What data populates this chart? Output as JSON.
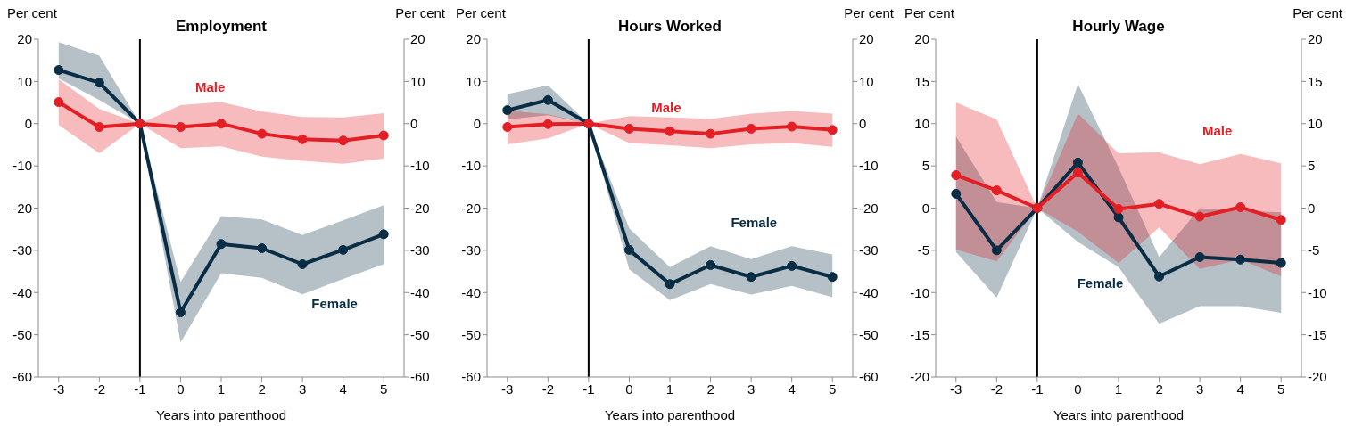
{
  "chart_data": [
    {
      "type": "line",
      "title": "Employment",
      "xlabel": "Years into parenthood",
      "ylabel": "Per cent",
      "y2label": "Per cent",
      "x": [
        -3,
        -2,
        -1,
        0,
        1,
        2,
        3,
        4,
        5
      ],
      "xlim": [
        -3.5,
        5.5
      ],
      "xticks": [
        -3,
        -2,
        -1,
        0,
        1,
        2,
        3,
        4,
        5
      ],
      "ylim": [
        -60,
        20
      ],
      "yticks": [
        -60,
        -50,
        -40,
        -30,
        -20,
        -10,
        0,
        10,
        20
      ],
      "y2lim": [
        -60,
        20
      ],
      "y2ticks": [
        -60,
        -50,
        -40,
        -30,
        -20,
        -10,
        0,
        10,
        20
      ],
      "grid": false,
      "legend": false,
      "marker": "circle",
      "line_style": "solid",
      "ref_lines": [
        {
          "axis": "x",
          "value": -1,
          "color": "#000000"
        }
      ],
      "series": [
        {
          "name": "Female",
          "color": "#0a2d46",
          "values": [
            12.7,
            9.7,
            0,
            -44.7,
            -28.5,
            -29.5,
            -33.3,
            -29.9,
            -26.2
          ],
          "lower": [
            10.7,
            5.6,
            0,
            -51.8,
            -35.4,
            -36.5,
            -40.4,
            -36.8,
            -33.3
          ],
          "upper": [
            19.3,
            16.1,
            0,
            -37.5,
            -21.9,
            -22.7,
            -26.4,
            -22.9,
            -19.3
          ]
        },
        {
          "name": "Male",
          "color": "#e31e24",
          "values": [
            5.1,
            -0.8,
            0,
            -0.8,
            0,
            -2.4,
            -3.7,
            -4.0,
            -2.8
          ],
          "lower": [
            -0.3,
            -7.0,
            0,
            -5.8,
            -5.4,
            -7.8,
            -8.8,
            -9.5,
            -8.3
          ],
          "upper": [
            10.5,
            3.5,
            0,
            4.4,
            5.1,
            2.9,
            1.6,
            1.5,
            2.5
          ]
        }
      ]
    },
    {
      "type": "line",
      "title": "Hours Worked",
      "xlabel": "Years into parenthood",
      "ylabel": "Per cent",
      "y2label": "Per cent",
      "x": [
        -3,
        -2,
        -1,
        0,
        1,
        2,
        3,
        4,
        5
      ],
      "xlim": [
        -3.5,
        5.5
      ],
      "xticks": [
        -3,
        -2,
        -1,
        0,
        1,
        2,
        3,
        4,
        5
      ],
      "ylim": [
        -60,
        20
      ],
      "yticks": [
        -60,
        -50,
        -40,
        -30,
        -20,
        -10,
        0,
        10,
        20
      ],
      "y2lim": [
        -60,
        20
      ],
      "y2ticks": [
        -60,
        -50,
        -40,
        -30,
        -20,
        -10,
        0,
        10,
        20
      ],
      "grid": false,
      "legend": false,
      "marker": "circle",
      "line_style": "solid",
      "ref_lines": [
        {
          "axis": "x",
          "value": -1,
          "color": "#000000"
        }
      ],
      "series": [
        {
          "name": "Female",
          "color": "#0a2d46",
          "values": [
            3.2,
            5.6,
            0,
            -29.9,
            -38.0,
            -33.5,
            -36.3,
            -33.7,
            -36.3
          ],
          "lower": [
            1.0,
            2.0,
            0,
            -34.5,
            -41.8,
            -38.0,
            -40.5,
            -38.4,
            -41.1
          ],
          "upper": [
            7.0,
            9.1,
            0,
            -24.8,
            -34.0,
            -29.0,
            -32.1,
            -29.0,
            -31.0
          ]
        },
        {
          "name": "Male",
          "color": "#e31e24",
          "values": [
            -0.8,
            -0.1,
            0,
            -1.2,
            -1.8,
            -2.4,
            -1.2,
            -0.7,
            -1.5
          ],
          "lower": [
            -4.9,
            -3.5,
            0,
            -4.6,
            -5.1,
            -5.8,
            -4.9,
            -4.6,
            -5.5
          ],
          "upper": [
            3.1,
            2.2,
            0,
            1.8,
            1.5,
            1.1,
            2.4,
            3.0,
            2.4
          ]
        }
      ]
    },
    {
      "type": "line",
      "title": "Hourly Wage",
      "xlabel": "Years into parenthood",
      "ylabel": "Per cent",
      "y2label": "Per cent",
      "x": [
        -3,
        -2,
        -1,
        0,
        1,
        2,
        3,
        4,
        5
      ],
      "xlim": [
        -3.5,
        5.5
      ],
      "xticks": [
        -3,
        -2,
        -1,
        0,
        1,
        2,
        3,
        4,
        5
      ],
      "ylim": [
        -20,
        20
      ],
      "yticks": [
        -20,
        -15,
        -10,
        -5,
        0,
        5,
        10,
        15,
        20
      ],
      "y2lim": [
        -20,
        20
      ],
      "y2ticks": [
        -20,
        -15,
        -10,
        -5,
        0,
        5,
        10,
        15,
        20
      ],
      "grid": false,
      "legend": false,
      "marker": "circle",
      "line_style": "solid",
      "ref_lines": [
        {
          "axis": "x",
          "value": -1,
          "color": "#000000"
        }
      ],
      "series": [
        {
          "name": "Female",
          "color": "#0a2d46",
          "values": [
            1.7,
            -5.0,
            0,
            5.4,
            -1.1,
            -8.1,
            -5.8,
            -6.1,
            -6.5
          ],
          "lower": [
            -5.2,
            -10.6,
            0,
            -4.0,
            -7.0,
            -13.7,
            -11.6,
            -11.6,
            -12.4
          ],
          "upper": [
            8.5,
            0.7,
            0,
            14.7,
            4.8,
            -5.8,
            0.0,
            -0.3,
            -0.5
          ]
        },
        {
          "name": "Male",
          "color": "#e31e24",
          "values": [
            3.9,
            2.1,
            0,
            4.2,
            -0.1,
            0.5,
            -1.0,
            0.1,
            -1.4
          ],
          "lower": [
            -4.9,
            -6.3,
            0,
            -2.8,
            -6.5,
            -2.3,
            -7.2,
            -6.1,
            -8.1
          ],
          "upper": [
            12.5,
            10.5,
            0,
            11.2,
            6.5,
            6.6,
            5.2,
            6.4,
            5.3
          ]
        }
      ]
    }
  ]
}
